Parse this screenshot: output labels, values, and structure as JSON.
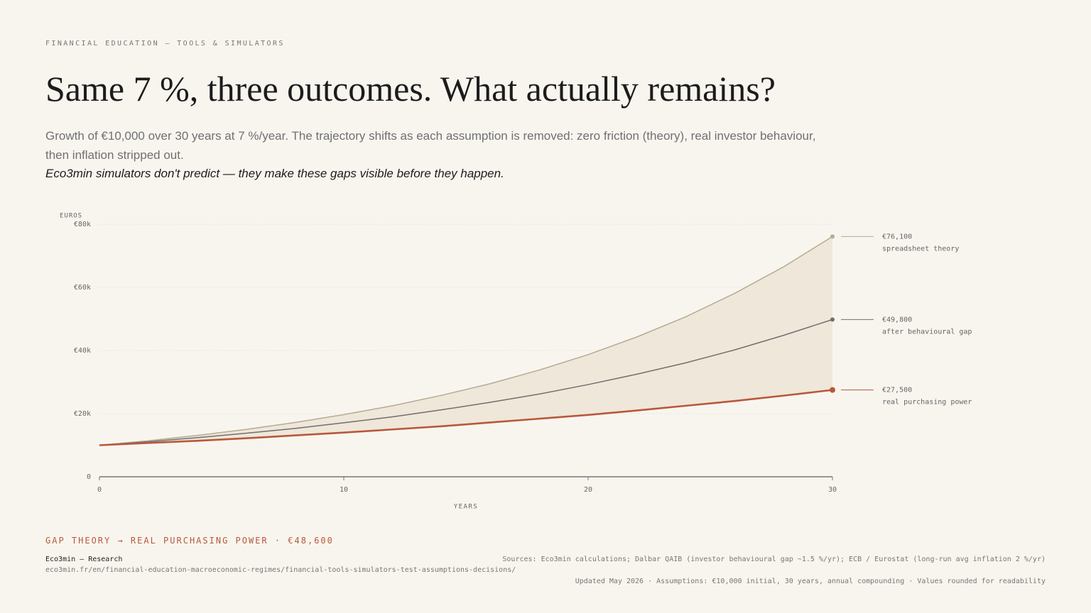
{
  "header": {
    "eyebrow": "FINANCIAL EDUCATION — TOOLS & SIMULATORS",
    "title": "Same 7 %, three outcomes. What actually remains?",
    "subtitle": "Growth of €10,000 over 30 years at 7 %/year. The trajectory shifts as each assumption is removed: zero friction (theory), real investor behaviour, then inflation stripped out.",
    "tagline": "Eco3min simulators don't predict — they make these gaps visible before they happen."
  },
  "chart_data": {
    "type": "line",
    "y_label": "EUROS",
    "x_label": "YEARS",
    "x": [
      0,
      2,
      4,
      6,
      8,
      10,
      12,
      14,
      16,
      18,
      20,
      22,
      24,
      26,
      28,
      30
    ],
    "series": [
      {
        "name": "spreadsheet theory",
        "color": "#b5aa94",
        "end_label": "€76,100",
        "values": [
          10000,
          11400,
          13100,
          15000,
          17200,
          19700,
          22500,
          25800,
          29500,
          33800,
          38700,
          44300,
          50700,
          58100,
          66500,
          76100
        ]
      },
      {
        "name": "after behavioural gap",
        "color": "#707070",
        "end_label": "€49,800",
        "values": [
          10000,
          11100,
          12400,
          13800,
          15300,
          17100,
          19000,
          21200,
          23600,
          26200,
          29200,
          32500,
          36100,
          40200,
          44800,
          49800
        ]
      },
      {
        "name": "real purchasing power",
        "color": "#b8583a",
        "end_label": "€27,500",
        "values": [
          10000,
          10700,
          11400,
          12200,
          13100,
          14000,
          15000,
          16000,
          17200,
          18400,
          19600,
          21000,
          22500,
          24000,
          25700,
          27500
        ]
      }
    ],
    "fill_between": true,
    "fill_color": "#efe7d9",
    "xlim": [
      0,
      30
    ],
    "xticks": [
      0,
      10,
      20,
      30
    ],
    "ylim": [
      0,
      80000
    ],
    "yticks": [
      0,
      {
        "value": 20000,
        "label": "€20k"
      },
      {
        "value": 40000,
        "label": "€40k"
      },
      {
        "value": 60000,
        "label": "€60k"
      },
      {
        "value": 80000,
        "label": "€80k"
      }
    ],
    "grid": true
  },
  "summary": "GAP THEORY → REAL PURCHASING POWER · €48,600",
  "footer": {
    "brand": "Eco3min — Research",
    "url": "eco3min.fr/en/financial-education-macroeconomic-regimes/financial-tools-simulators-test-assumptions-decisions/",
    "sources": "Sources: Eco3min calculations; Dalbar QAIB (investor behavioural gap ~1.5 %/yr); ECB / Eurostat (long-run avg inflation 2 %/yr)",
    "updated": "Updated May 2026 · Assumptions: €10,000 initial, 30 years, annual compounding · Values rounded for readability"
  }
}
